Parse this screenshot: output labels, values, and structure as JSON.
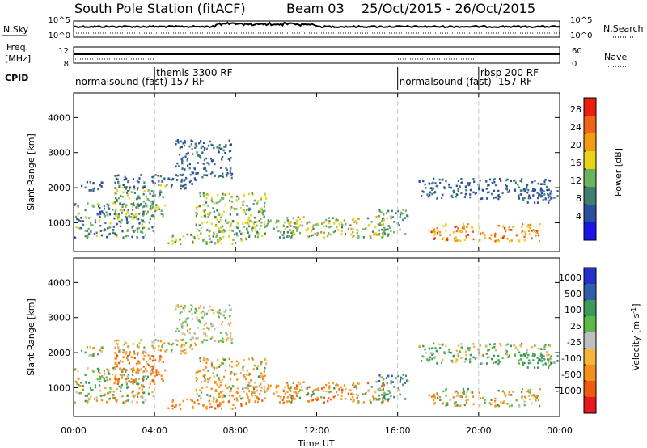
{
  "header": {
    "station": "South Pole Station (fitACF)",
    "beam": "Beam 03",
    "dates": "25/Oct/2015 - 26/Oct/2015"
  },
  "top_panels": {
    "nsky_label": "N.Sky",
    "nsky_ticks": [
      "10^5",
      "10^0"
    ],
    "nsearch_label": "N.Search",
    "nsearch_ticks": [
      "10^5",
      "10^0"
    ],
    "freq_label_1": "Freq.",
    "freq_label_2": "[MHz]",
    "freq_ticks": [
      "12",
      "8"
    ],
    "nave_label": "Nave",
    "nave_ticks": [
      "60",
      "0"
    ],
    "cpid_label": "CPID"
  },
  "cpid_segments": [
    {
      "start_h": 0.0,
      "end_h": 4.0,
      "label": "normalsound (fast) 157 RF"
    },
    {
      "start_h": 4.0,
      "end_h": 16.0,
      "label": "themis 3300 RF"
    },
    {
      "start_h": 16.0,
      "end_h": 20.0,
      "label": "normalsound (fast) -157 RF"
    },
    {
      "start_h": 20.0,
      "end_h": 24.0,
      "label": "rbsp 200 RF"
    }
  ],
  "x_axis": {
    "label": "Time UT",
    "ticks": [
      "00:00",
      "04:00",
      "08:00",
      "12:00",
      "16:00",
      "20:00",
      "00:00"
    ]
  },
  "power_panel": {
    "ylabel": "Slant Range [km]",
    "yticks": [
      "4000",
      "3000",
      "2000",
      "1000"
    ],
    "colorbar_label": "Power [dB]",
    "colorbar_ticks": [
      "28",
      "24",
      "20",
      "16",
      "12",
      "8",
      "4"
    ]
  },
  "velocity_panel": {
    "ylabel": "Slant Range [km]",
    "yticks": [
      "4000",
      "3000",
      "2000",
      "1000"
    ],
    "colorbar_label": "Velocity [m s",
    "colorbar_label_sup": "-1",
    "colorbar_label_end": "]",
    "colorbar_ticks": [
      "1000",
      "500",
      "100",
      "25",
      "-25",
      "-100",
      "-500",
      "-1000"
    ]
  },
  "colors": {
    "power_scale": [
      "#1a14e6",
      "#2b4f9c",
      "#3f7f6f",
      "#6bb25c",
      "#e8d21c",
      "#f59a14",
      "#ef6418",
      "#e82010"
    ],
    "velocity_scale": [
      "#e41a1c",
      "#ee5a10",
      "#f5901a",
      "#f8b43a",
      "#bfbfbf",
      "#5cb84a",
      "#3a9a5a",
      "#2f5fa8",
      "#2430c8"
    ],
    "axis": "#000000",
    "guide": "#c8c8c8"
  },
  "chart_data": {
    "type": "heatmap",
    "x_range_hours": [
      0,
      24
    ],
    "y_range_km": [
      180,
      4700
    ],
    "power_range_db": [
      0,
      32
    ],
    "velocity_range_ms": [
      -1200,
      1200
    ],
    "time_ticks_hours": [
      0,
      4,
      8,
      12,
      16,
      20,
      24
    ],
    "range_ticks_km": [
      1000,
      2000,
      3000,
      4000
    ],
    "mode_boundaries_hours": [
      4,
      16,
      20
    ],
    "echo_regions": [
      {
        "t": [
          0.0,
          4.0
        ],
        "r": [
          600,
          1600
        ],
        "power": [
          4,
          18
        ],
        "velocity": [
          -300,
          300
        ]
      },
      {
        "t": [
          0.3,
          1.5
        ],
        "r": [
          1900,
          2200
        ],
        "power": [
          4,
          12
        ],
        "velocity": [
          -150,
          150
        ]
      },
      {
        "t": [
          2.0,
          4.5
        ],
        "r": [
          1100,
          2100
        ],
        "power": [
          8,
          20
        ],
        "velocity": [
          -700,
          -100
        ]
      },
      {
        "t": [
          2.0,
          6.0
        ],
        "r": [
          2000,
          2400
        ],
        "power": [
          4,
          10
        ],
        "velocity": [
          -200,
          100
        ]
      },
      {
        "t": [
          4.5,
          8.5
        ],
        "r": [
          400,
          700
        ],
        "power": [
          8,
          20
        ],
        "velocity": [
          -600,
          -50
        ]
      },
      {
        "t": [
          5.0,
          7.8
        ],
        "r": [
          2300,
          3400
        ],
        "power": [
          4,
          10
        ],
        "velocity": [
          -80,
          80
        ]
      },
      {
        "t": [
          6.0,
          9.5
        ],
        "r": [
          700,
          1900
        ],
        "power": [
          8,
          20
        ],
        "velocity": [
          -500,
          200
        ]
      },
      {
        "t": [
          8.5,
          11.0
        ],
        "r": [
          600,
          1100
        ],
        "power": [
          8,
          20
        ],
        "velocity": [
          -600,
          -100
        ]
      },
      {
        "t": [
          10.5,
          15.5
        ],
        "r": [
          600,
          1200
        ],
        "power": [
          10,
          22
        ],
        "velocity": [
          -700,
          200
        ]
      },
      {
        "t": [
          15.0,
          16.5
        ],
        "r": [
          700,
          1400
        ],
        "power": [
          8,
          16
        ],
        "velocity": [
          -100,
          900
        ]
      },
      {
        "t": [
          17.0,
          23.5
        ],
        "r": [
          1700,
          2300
        ],
        "power": [
          4,
          10
        ],
        "velocity": [
          -100,
          300
        ]
      },
      {
        "t": [
          17.5,
          23.0
        ],
        "r": [
          500,
          1000
        ],
        "power": [
          16,
          30
        ],
        "velocity": [
          -300,
          200
        ]
      },
      {
        "t": [
          22.0,
          24.0
        ],
        "r": [
          1600,
          2000
        ],
        "power": [
          4,
          10
        ],
        "velocity": [
          50,
          600
        ]
      }
    ]
  }
}
